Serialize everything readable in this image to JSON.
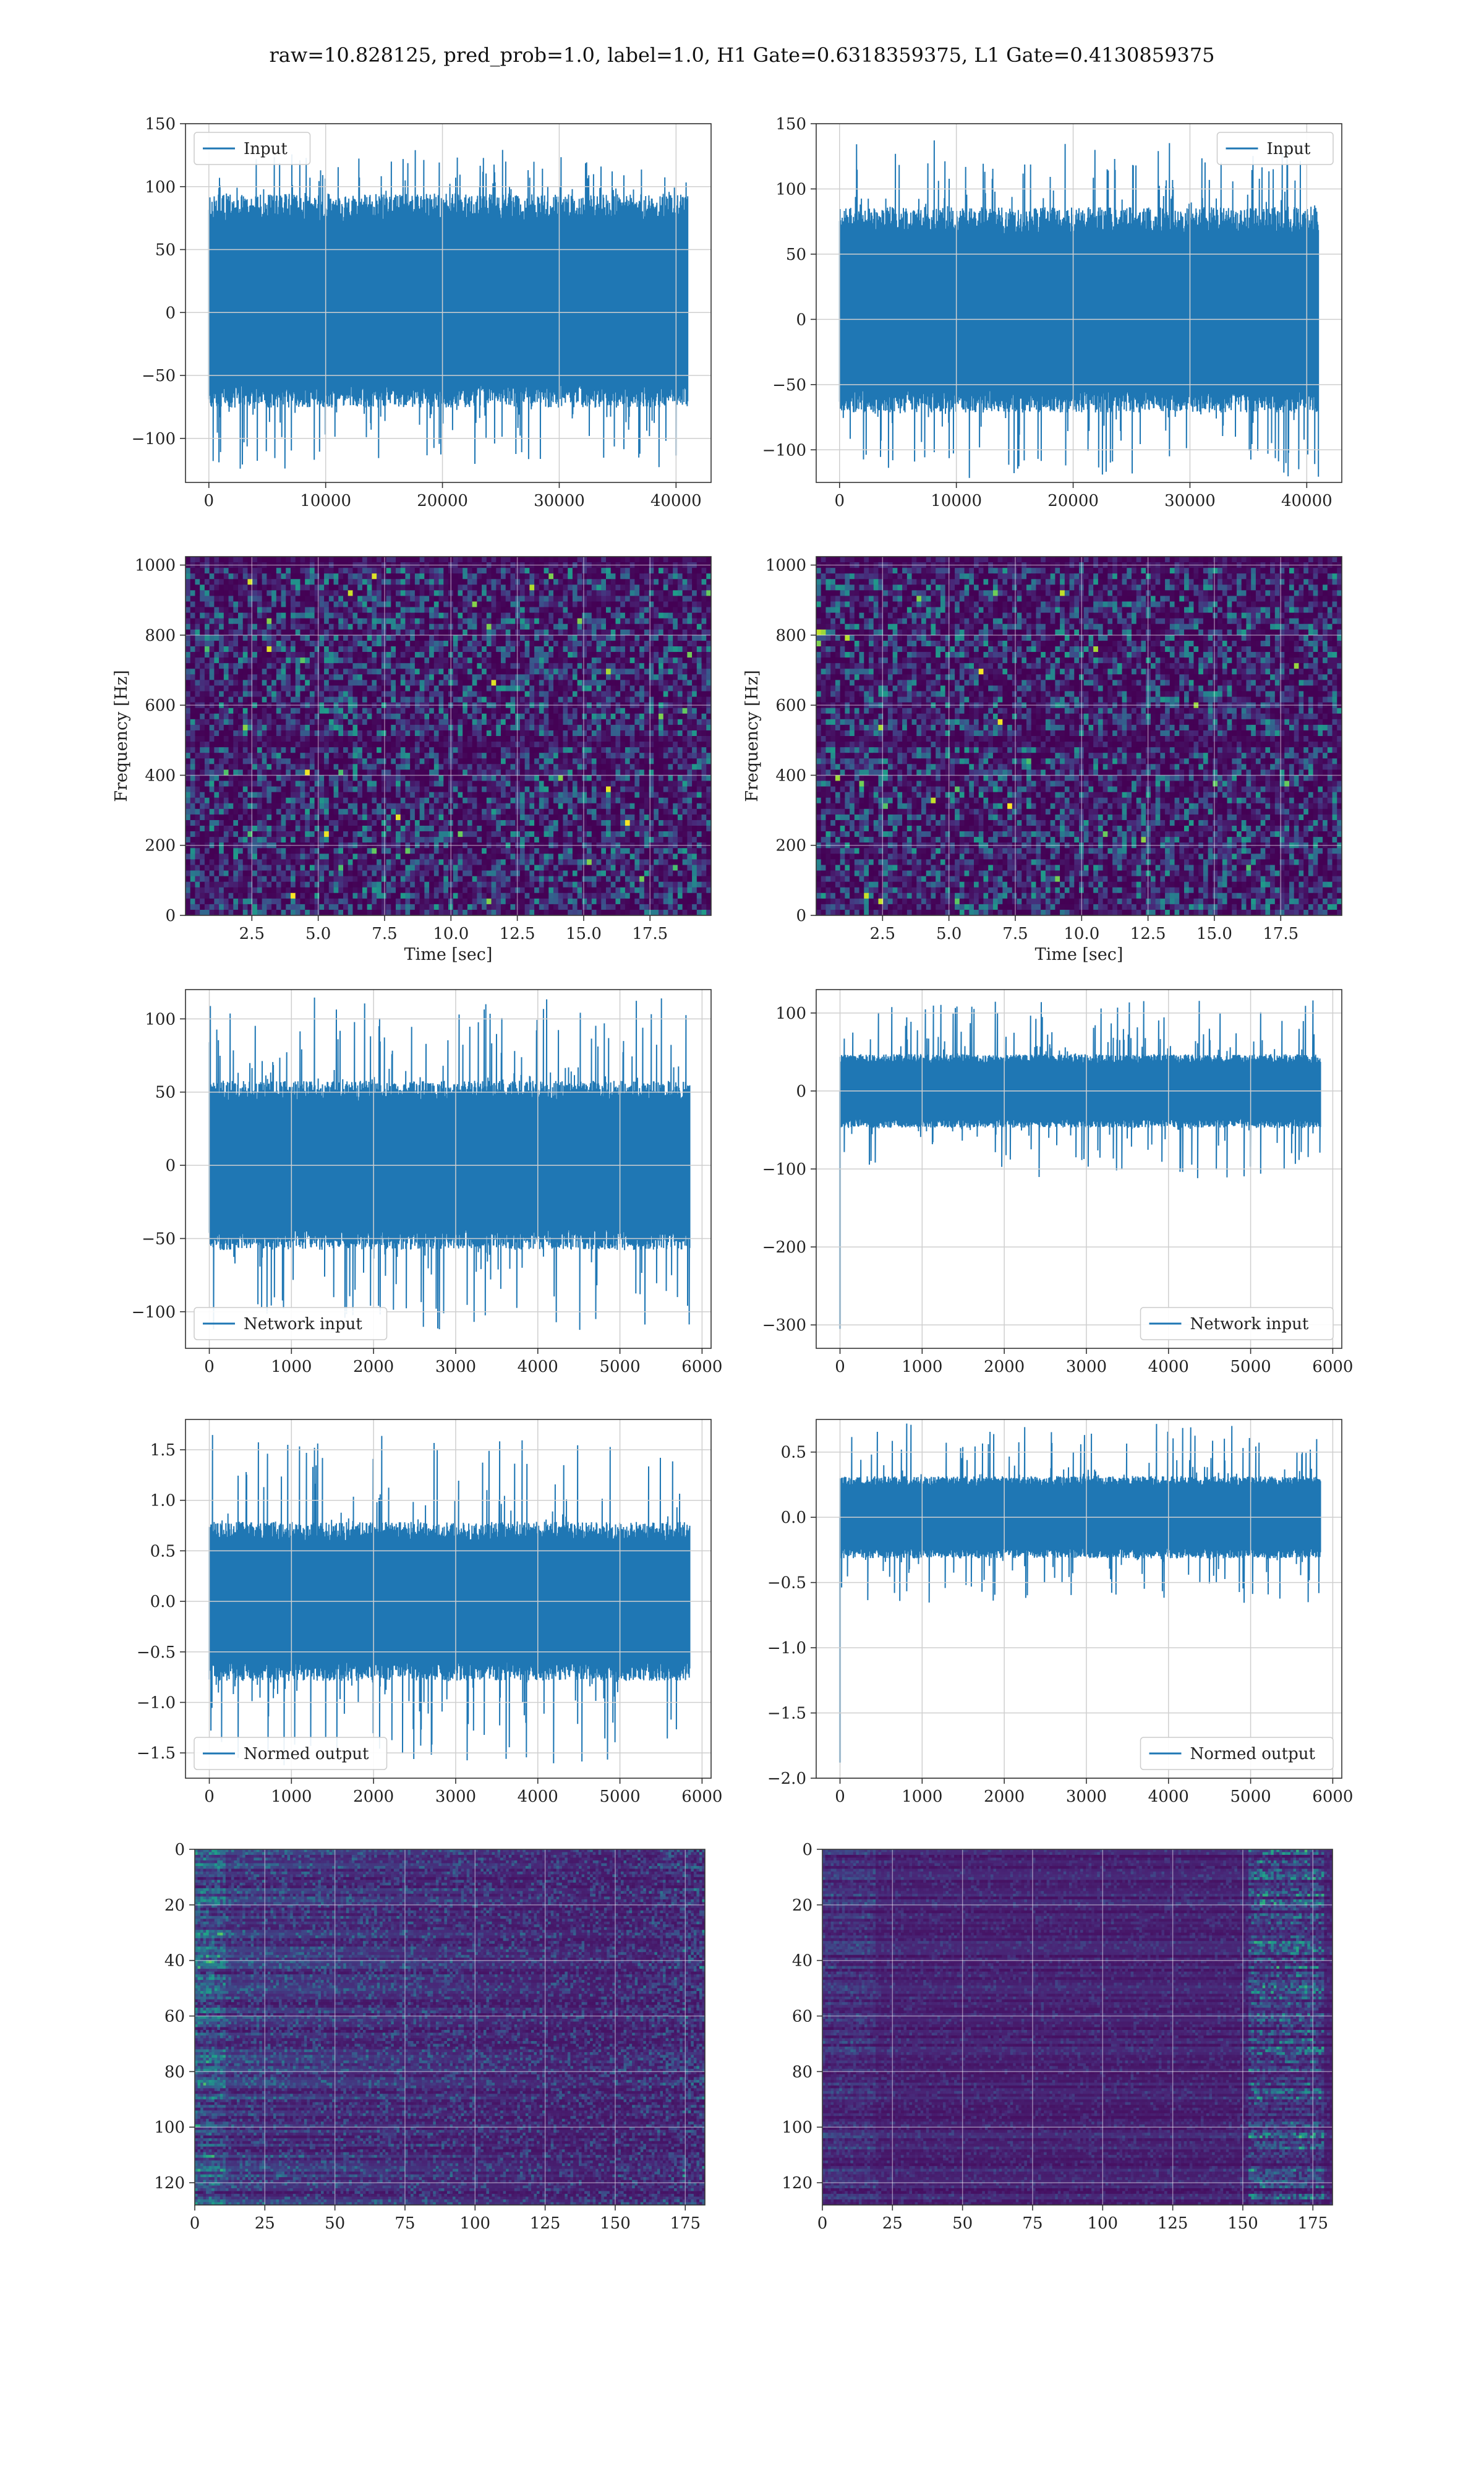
{
  "title": "raw=10.828125, pred_prob=1.0, label=1.0, H1 Gate=0.6318359375, L1 Gate=0.4130859375",
  "colors": {
    "series": "#1f77b4",
    "grid": "#cfcfcf",
    "viridis_low": "#440154",
    "viridis_high": "#fde725"
  },
  "chart_data": [
    {
      "id": "r1l",
      "type": "line",
      "legend": "Input",
      "legend_loc": "upper-left",
      "grid": true,
      "xlim": [
        -2000,
        43000
      ],
      "ylim": [
        -135,
        150
      ],
      "xticks": [
        0,
        10000,
        20000,
        30000,
        40000
      ],
      "yticks": [
        -100,
        -50,
        0,
        50,
        100,
        150
      ],
      "xlabel": "",
      "ylabel": "",
      "signal": {
        "x_range": [
          0,
          41000
        ],
        "core": [
          -72,
          90
        ],
        "peak_max": 130,
        "peak_min": -125
      }
    },
    {
      "id": "r1r",
      "type": "line",
      "legend": "Input",
      "legend_loc": "upper-right",
      "grid": true,
      "xlim": [
        -2000,
        43000
      ],
      "ylim": [
        -125,
        150
      ],
      "xticks": [
        0,
        10000,
        20000,
        30000,
        40000
      ],
      "yticks": [
        -100,
        -50,
        0,
        50,
        100,
        150
      ],
      "xlabel": "",
      "ylabel": "",
      "signal": {
        "x_range": [
          0,
          41000
        ],
        "core": [
          -68,
          82
        ],
        "peak_max": 138,
        "peak_min": -122
      }
    },
    {
      "id": "r2l",
      "type": "heatmap",
      "grid": true,
      "xlim": [
        0,
        19.8
      ],
      "ylim": [
        0,
        1024
      ],
      "xticks": [
        2.5,
        5.0,
        7.5,
        10.0,
        12.5,
        15.0,
        17.5
      ],
      "yticks": [
        0,
        200,
        400,
        600,
        800,
        1000
      ],
      "xlabel": "Time [sec]",
      "ylabel": "Frequency [Hz]"
    },
    {
      "id": "r2r",
      "type": "heatmap",
      "grid": true,
      "xlim": [
        0,
        19.8
      ],
      "ylim": [
        0,
        1024
      ],
      "xticks": [
        2.5,
        5.0,
        7.5,
        10.0,
        12.5,
        15.0,
        17.5
      ],
      "yticks": [
        0,
        200,
        400,
        600,
        800,
        1000
      ],
      "xlabel": "Time [sec]",
      "ylabel": "Frequency [Hz]"
    },
    {
      "id": "r3l",
      "type": "line",
      "legend": "Network input",
      "legend_loc": "lower-left",
      "grid": true,
      "xlim": [
        -290,
        6110
      ],
      "ylim": [
        -125,
        120
      ],
      "xticks": [
        0,
        1000,
        2000,
        3000,
        4000,
        5000,
        6000
      ],
      "yticks": [
        -100,
        -50,
        0,
        50,
        100
      ],
      "xlabel": "",
      "ylabel": "",
      "signal": {
        "x_range": [
          0,
          5850
        ],
        "core": [
          -55,
          55
        ],
        "peak_max": 115,
        "peak_min": -113
      }
    },
    {
      "id": "r3r",
      "type": "line",
      "legend": "Network input",
      "legend_loc": "lower-right",
      "grid": true,
      "xlim": [
        -290,
        6110
      ],
      "ylim": [
        -330,
        130
      ],
      "xticks": [
        0,
        1000,
        2000,
        3000,
        4000,
        5000,
        6000
      ],
      "yticks": [
        -300,
        -200,
        -100,
        0,
        100
      ],
      "xlabel": "",
      "ylabel": "",
      "signal": {
        "x_range": [
          0,
          5850
        ],
        "core": [
          -45,
          45
        ],
        "peak_max": 118,
        "peak_min": -112,
        "spike_at_start": -305
      }
    },
    {
      "id": "r4l",
      "type": "line",
      "legend": "Normed output",
      "legend_loc": "lower-left",
      "grid": true,
      "xlim": [
        -290,
        6110
      ],
      "ylim": [
        -1.75,
        1.8
      ],
      "xticks": [
        0,
        1000,
        2000,
        3000,
        4000,
        5000,
        6000
      ],
      "yticks": [
        -1.5,
        -1.0,
        -0.5,
        0.0,
        0.5,
        1.0,
        1.5
      ],
      "xlabel": "",
      "ylabel": "",
      "signal": {
        "x_range": [
          0,
          5850
        ],
        "core": [
          -0.75,
          0.75
        ],
        "peak_max": 1.65,
        "peak_min": -1.65
      }
    },
    {
      "id": "r4r",
      "type": "line",
      "legend": "Normed output",
      "legend_loc": "lower-right",
      "grid": true,
      "xlim": [
        -290,
        6110
      ],
      "ylim": [
        -2.0,
        0.75
      ],
      "xticks": [
        0,
        1000,
        2000,
        3000,
        4000,
        5000,
        6000
      ],
      "yticks": [
        -2.0,
        -1.5,
        -1.0,
        -0.5,
        0.0,
        0.5
      ],
      "xlabel": "",
      "ylabel": "",
      "signal": {
        "x_range": [
          0,
          5850
        ],
        "core": [
          -0.3,
          0.3
        ],
        "peak_max": 0.72,
        "peak_min": -0.66,
        "spike_at_start": -1.88
      }
    },
    {
      "id": "r5l",
      "type": "heatmap",
      "grid": true,
      "xlim": [
        0,
        182
      ],
      "ylim": [
        128,
        0
      ],
      "xticks": [
        0,
        25,
        50,
        75,
        100,
        125,
        150,
        175
      ],
      "yticks": [
        0,
        20,
        40,
        60,
        80,
        100,
        120
      ],
      "xlabel": "",
      "ylabel": ""
    },
    {
      "id": "r5r",
      "type": "heatmap",
      "grid": true,
      "xlim": [
        0,
        182
      ],
      "ylim": [
        128,
        0
      ],
      "xticks": [
        0,
        25,
        50,
        75,
        100,
        125,
        150,
        175
      ],
      "yticks": [
        0,
        20,
        40,
        60,
        80,
        100,
        120
      ],
      "xlabel": "",
      "ylabel": ""
    }
  ]
}
